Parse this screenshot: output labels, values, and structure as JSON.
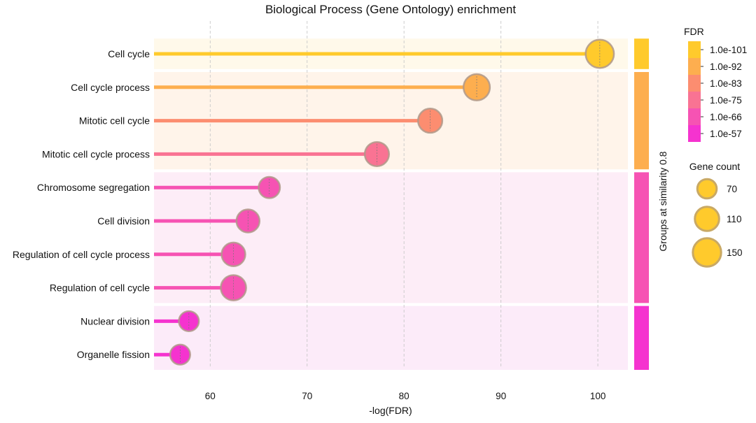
{
  "chart_data": {
    "type": "lollipop",
    "title": "Biological Process (Gene Ontology) enrichment",
    "xlabel": "-log(FDR)",
    "xlim": [
      54.2,
      103.1
    ],
    "xticks": [
      60,
      70,
      80,
      90,
      100
    ],
    "grid": "vertical dashed",
    "categories": [
      "Cell cycle",
      "Cell cycle process",
      "Mitotic cell cycle",
      "Mitotic cell cycle process",
      "Chromosome segregation",
      "Cell division",
      "Regulation of cell cycle process",
      "Regulation of cell cycle",
      "Nuclear division",
      "Organelle fission"
    ],
    "values": [
      100.2,
      87.5,
      82.7,
      77.2,
      66.1,
      63.9,
      62.4,
      62.4,
      57.8,
      56.9
    ],
    "gene_count": [
      150,
      130,
      110,
      110,
      85,
      100,
      105,
      120,
      75,
      75
    ],
    "colors": [
      "#FFCA2C",
      "#FDAE4F",
      "#FC8D70",
      "#F97393",
      "#F653B3",
      "#F653B3",
      "#F653B3",
      "#F653B3",
      "#F533CF",
      "#F533CF"
    ],
    "groups": [
      {
        "rows": [
          0,
          0
        ],
        "band": "#FFF9EA",
        "color": "#FFCA2C"
      },
      {
        "rows": [
          1,
          3
        ],
        "band": "#FFF4EA",
        "color": "#FDAE4F"
      },
      {
        "rows": [
          4,
          7
        ],
        "band": "#FDEDF7",
        "color": "#F653B3"
      },
      {
        "rows": [
          8,
          9
        ],
        "band": "#FCEBF9",
        "color": "#F533CF"
      }
    ],
    "group_axis_label": "Groups at similarity 0.8",
    "fdr_legend": {
      "title": "FDR",
      "labels": [
        "1.0e-101",
        "1.0e-92",
        "1.0e-83",
        "1.0e-75",
        "1.0e-66",
        "1.0e-57"
      ],
      "colors": [
        "#FFCA2C",
        "#FDAE4F",
        "#FC8D70",
        "#F97393",
        "#F653B3",
        "#F533CF"
      ]
    },
    "size_legend": {
      "title": "Gene count",
      "values": [
        70,
        110,
        150
      ],
      "labels": [
        "70",
        "110",
        "150"
      ],
      "color": "#FFCA2C",
      "edge_color": "#C9A965"
    }
  }
}
